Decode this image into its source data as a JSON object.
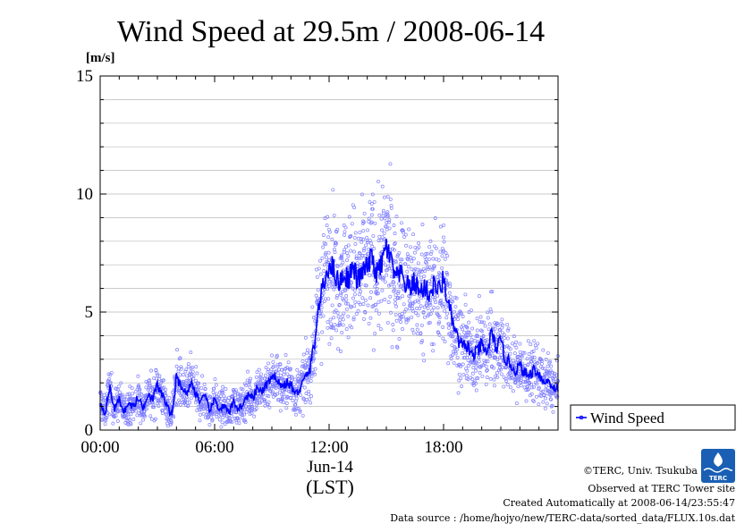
{
  "chart_data": {
    "type": "scatter",
    "title": "Wind Speed at 29.5m / 2008-06-14",
    "ylabel": "[m/s]",
    "xlabel": "(LST)",
    "date_label": "Jun-14",
    "ylim": [
      0,
      15
    ],
    "xlim_hours": [
      0,
      24
    ],
    "yticks": [
      "0",
      "5",
      "10",
      "15"
    ],
    "xticks": [
      {
        "hour": 0,
        "label": "00:00"
      },
      {
        "hour": 6,
        "label": "06:00"
      },
      {
        "hour": 12,
        "label": "12:00"
      },
      {
        "hour": 18,
        "label": "18:00"
      }
    ],
    "grid": true,
    "legend_position": "right",
    "series": [
      {
        "name": "Wind Speed",
        "color": "#0000ff",
        "point_color": "#8080ff",
        "mean_x_hours": [
          0.0,
          0.25,
          0.5,
          0.75,
          1.0,
          1.25,
          1.5,
          1.75,
          2.0,
          2.25,
          2.5,
          2.75,
          3.0,
          3.25,
          3.5,
          3.75,
          4.0,
          4.25,
          4.5,
          4.75,
          5.0,
          5.25,
          5.5,
          5.75,
          6.0,
          6.25,
          6.5,
          6.75,
          7.0,
          7.25,
          7.5,
          7.75,
          8.0,
          8.25,
          8.5,
          8.75,
          9.0,
          9.25,
          9.5,
          9.75,
          10.0,
          10.25,
          10.5,
          10.75,
          11.0,
          11.25,
          11.5,
          11.75,
          12.0,
          12.25,
          12.5,
          12.75,
          13.0,
          13.25,
          13.5,
          13.75,
          14.0,
          14.25,
          14.5,
          14.75,
          15.0,
          15.25,
          15.5,
          15.75,
          16.0,
          16.25,
          16.5,
          16.75,
          17.0,
          17.25,
          17.5,
          17.75,
          18.0,
          18.25,
          18.5,
          18.75,
          19.0,
          19.25,
          19.5,
          19.75,
          20.0,
          20.25,
          20.5,
          20.75,
          21.0,
          21.25,
          21.5,
          21.75,
          22.0,
          22.25,
          22.5,
          22.75,
          23.0,
          23.25,
          23.5,
          23.75
        ],
        "mean_y": [
          1.2,
          0.7,
          1.8,
          0.9,
          1.3,
          0.8,
          1.1,
          1.0,
          1.4,
          0.9,
          1.6,
          1.3,
          1.9,
          1.5,
          1.0,
          0.6,
          2.2,
          1.9,
          1.5,
          2.0,
          1.6,
          1.2,
          1.4,
          0.8,
          1.3,
          0.9,
          1.0,
          0.7,
          1.2,
          0.9,
          1.1,
          1.5,
          1.3,
          1.8,
          1.6,
          2.0,
          2.1,
          2.3,
          1.8,
          2.0,
          1.9,
          1.5,
          1.8,
          2.2,
          2.6,
          3.8,
          5.5,
          6.2,
          7.1,
          6.8,
          6.2,
          6.6,
          6.4,
          6.9,
          6.3,
          6.7,
          6.9,
          7.3,
          6.6,
          7.0,
          7.8,
          7.1,
          6.4,
          6.6,
          6.2,
          6.0,
          6.3,
          5.8,
          6.1,
          5.7,
          6.2,
          5.9,
          6.4,
          5.3,
          4.5,
          3.8,
          3.5,
          3.6,
          3.1,
          3.3,
          3.6,
          3.2,
          4.1,
          3.5,
          3.7,
          3.0,
          2.8,
          2.5,
          2.7,
          2.4,
          2.3,
          2.6,
          2.4,
          2.0,
          2.1,
          1.8
        ]
      }
    ]
  },
  "footer": {
    "copyright": "©TERC, Univ. Tsukuba",
    "observed": "Observed at TERC Tower site",
    "created": "Created Automatically at 2008-06-14/23:55:47",
    "source": "Data source : /home/hojyo/new/TERC-data/sorted_data/FLUX.10s.dat"
  },
  "logo": {
    "text": "TERC",
    "color": "#1a5fb4"
  }
}
